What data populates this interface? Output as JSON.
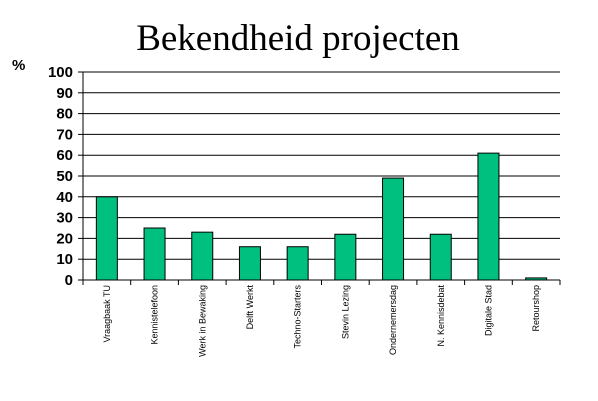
{
  "chart_data": {
    "type": "bar",
    "title": "Bekendheid projecten",
    "ylabel": "%",
    "xlabel": "",
    "ylim": [
      0,
      100
    ],
    "yticks": [
      0,
      10,
      20,
      30,
      40,
      50,
      60,
      70,
      80,
      90,
      100
    ],
    "grid": true,
    "categories": [
      "Vraagbaak TU",
      "Kennistelefoon",
      "Werk in Bewaking",
      "Delft Werkt",
      "Techno-Starters",
      "Stevin Lezing",
      "Ondernemersdag",
      "N. Kennisdebat",
      "Digitale Stad",
      "Retourshop"
    ],
    "values": [
      40,
      25,
      23,
      16,
      16,
      22,
      49,
      22,
      61,
      1
    ],
    "colors": {
      "bar_fill": "#00c080",
      "bar_stroke": "#000000",
      "grid": "#000000",
      "axis": "#000000"
    }
  }
}
